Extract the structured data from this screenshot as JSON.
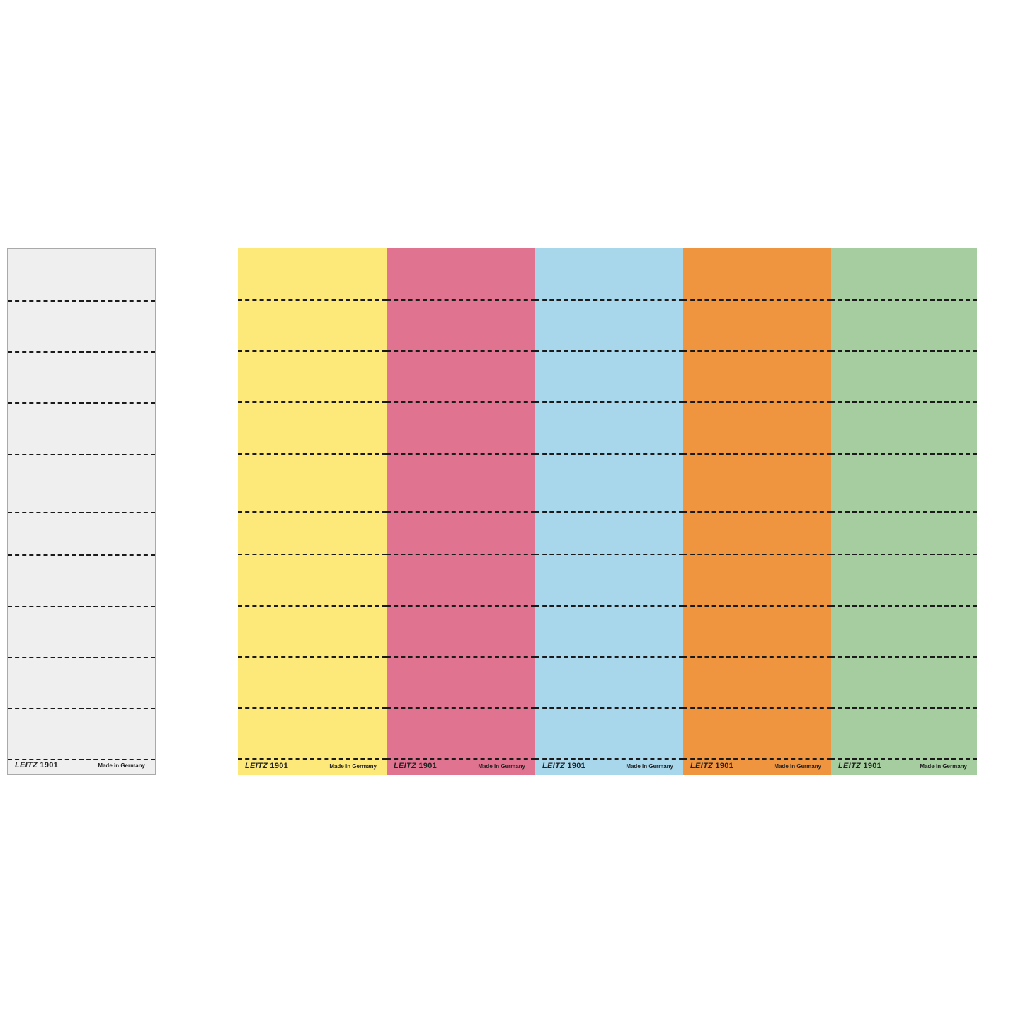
{
  "sheets": [
    {
      "color": "#efefef",
      "brand": "LEITZ",
      "code": "1901",
      "made": "Made in Germany"
    },
    {
      "color": "#fde97a",
      "brand": "LEITZ",
      "code": "1901",
      "made": "Made in Germany"
    },
    {
      "color": "#e07490",
      "brand": "LEITZ",
      "code": "1901",
      "made": "Made in Germany"
    },
    {
      "color": "#a8d7ec",
      "brand": "LEITZ",
      "code": "1901",
      "made": "Made in Germany"
    },
    {
      "color": "#ef9540",
      "brand": "LEITZ",
      "code": "1901",
      "made": "Made in Germany"
    },
    {
      "color": "#a5cd9f",
      "brand": "LEITZ",
      "code": "1901",
      "made": "Made in Germany"
    }
  ]
}
